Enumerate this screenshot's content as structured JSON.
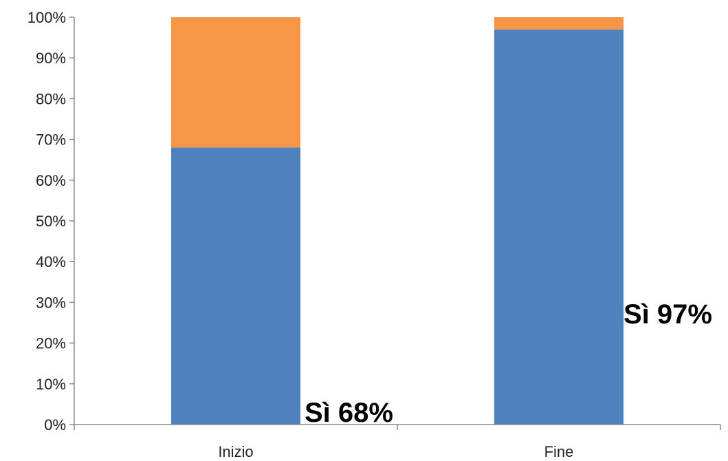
{
  "chart_data": {
    "type": "bar",
    "stacked": true,
    "categories": [
      "Inizio",
      "Fine"
    ],
    "series": [
      {
        "values": [
          68,
          97
        ],
        "color": "#4F81BD"
      },
      {
        "values": [
          32,
          3
        ],
        "color": "#F79646"
      }
    ],
    "ylim": [
      0,
      100
    ],
    "y_ticks": [
      "0%",
      "10%",
      "20%",
      "30%",
      "40%",
      "50%",
      "60%",
      "70%",
      "80%",
      "90%",
      "100%"
    ],
    "grid": false,
    "annotations": [
      "Sì 68%",
      "Sì 97%"
    ]
  }
}
